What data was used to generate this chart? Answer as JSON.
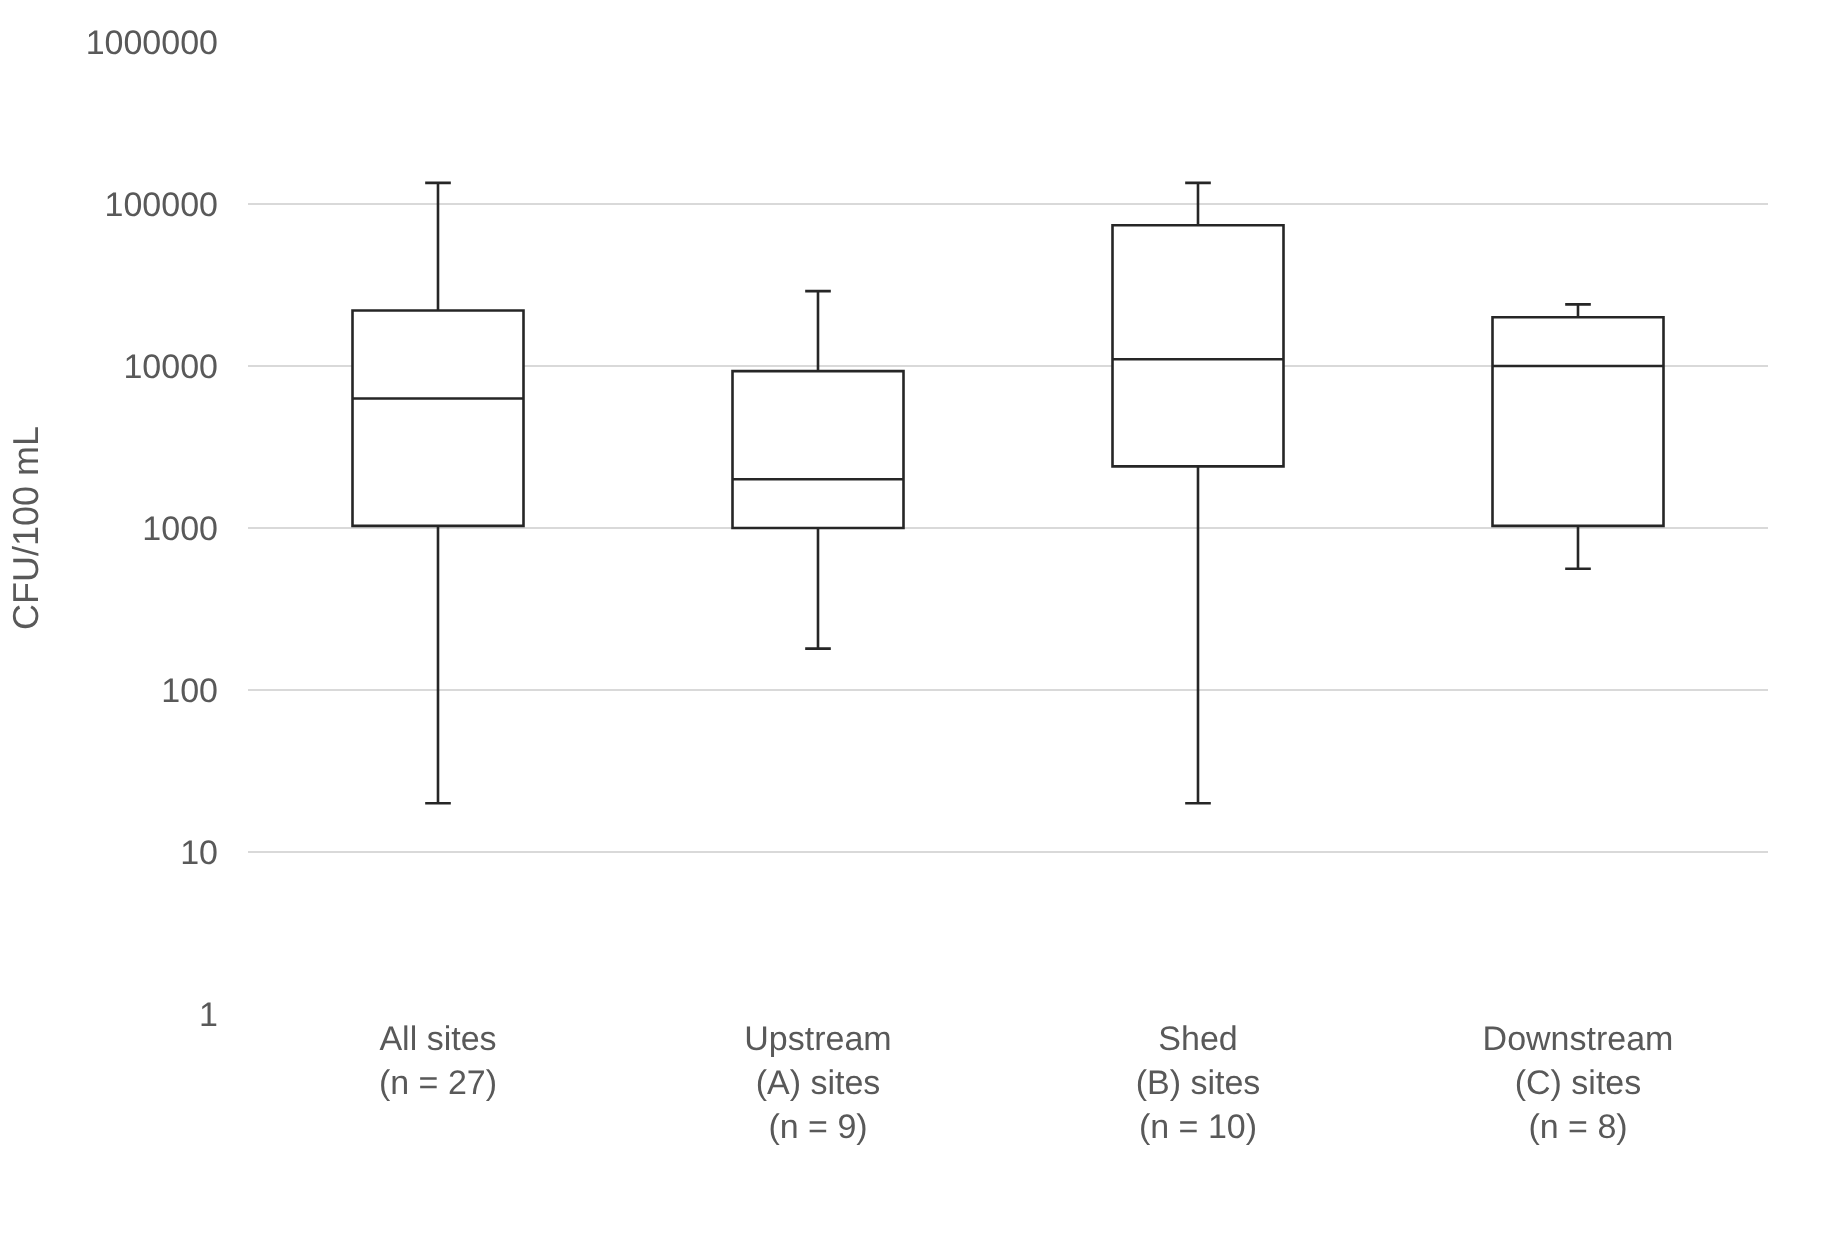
{
  "chart_data": {
    "type": "box",
    "ylabel": "CFU/100 mL",
    "categories": [
      "All sites\n(n = 27)",
      "Upstream\n(A) sites\n(n = 9)",
      "Shed\n(B) sites\n(n = 10)",
      "Downstream\n(C) sites\n(n = 8)"
    ],
    "boxes": [
      {
        "low": 20,
        "q1": 1030,
        "median": 6300,
        "q3": 22000,
        "high": 135000
      },
      {
        "low": 180,
        "q1": 1000,
        "median": 2000,
        "q3": 9300,
        "high": 29000
      },
      {
        "low": 20,
        "q1": 2400,
        "median": 11000,
        "q3": 74000,
        "high": 135000
      },
      {
        "low": 560,
        "q1": 1030,
        "median": 10000,
        "q3": 20000,
        "high": 24000
      }
    ],
    "color": "#262626",
    "log": true,
    "ylim": [
      1,
      1000000
    ],
    "yticks": [
      1,
      10,
      100,
      1000,
      10000,
      100000,
      1000000
    ],
    "grid": "y",
    "legend": false
  }
}
